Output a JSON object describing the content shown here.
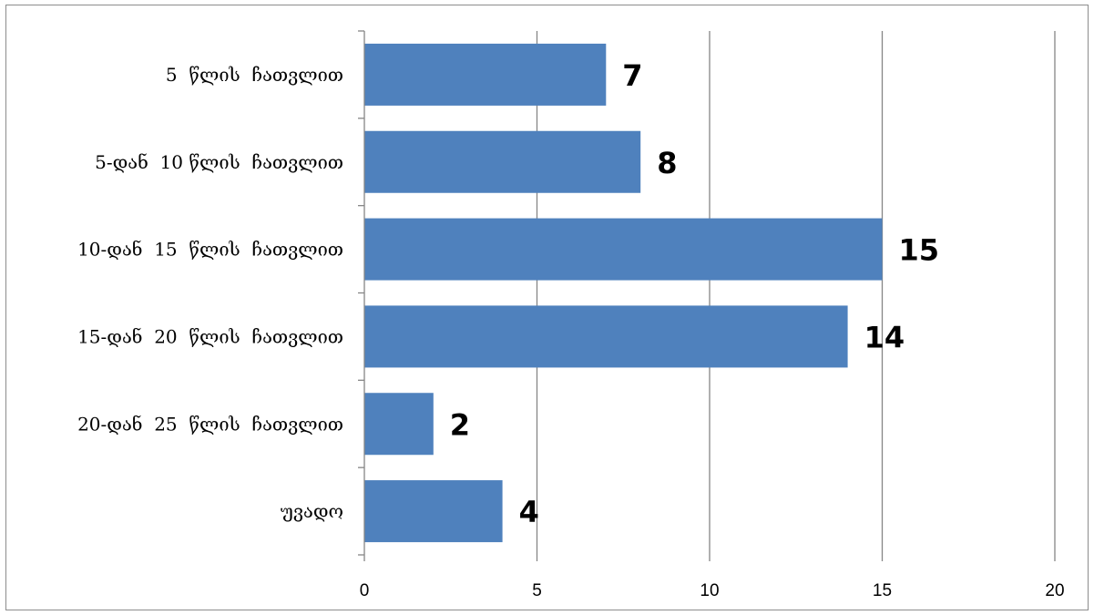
{
  "chart_data": {
    "type": "bar",
    "orientation": "horizontal",
    "categories": [
      "5  წლის  ჩათვლით",
      "5-დან  10 წლის  ჩათვლით",
      "10-დან  15  წლის  ჩათვლით",
      "15-დან  20  წლის  ჩათვლით",
      "20-დან  25  წლის  ჩათვლით",
      "უვადო"
    ],
    "values": [
      7,
      8,
      15,
      14,
      2,
      4
    ],
    "data_labels": [
      "7",
      "8",
      "15",
      "14",
      "2",
      "4"
    ],
    "xlim": [
      0,
      20
    ],
    "x_ticks": [
      0,
      5,
      10,
      15,
      20
    ],
    "x_tick_labels": [
      "0",
      "5",
      "10",
      "15",
      "20"
    ],
    "grid": "vertical",
    "legend": "none",
    "bar_color": "#4F81BD",
    "grid_color": "#868686"
  }
}
